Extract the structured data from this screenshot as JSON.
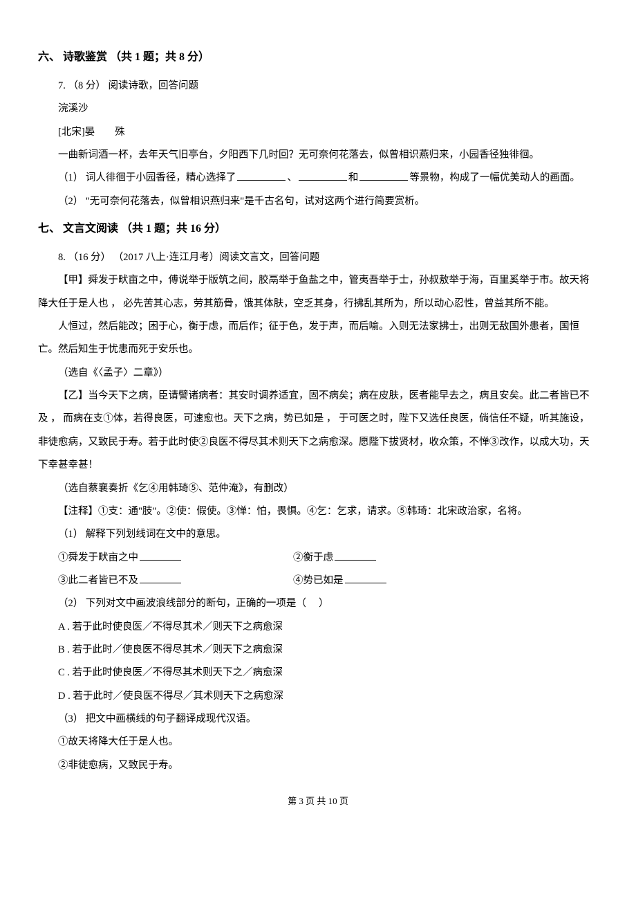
{
  "section6": {
    "heading": "六、 诗歌鉴赏 （共 1 题；共 8 分）",
    "q7_intro": "7. （8 分）  阅读诗歌，回答问题",
    "poem_title": "浣溪沙",
    "poem_author": "[北宋]晏　　殊",
    "poem_body": "一曲新词酒一杯，去年天气旧亭台，夕阳西下几时回？无可奈何花落去，似曾相识燕归来，小园香径独徘徊。",
    "q7_1a": "（1）  词人徘徊于小园香径，精心选择了",
    "q7_1b": "、",
    "q7_1c": "和",
    "q7_1d": "等景物，构成了一幅优美动人的画面。",
    "q7_2": "（2）  \"无可奈何花落去，似曾相识燕归来\"是千古名句，试对这两个进行简要赏析。"
  },
  "section7": {
    "heading": "七、 文言文阅读 （共 1 题；共 16 分）",
    "q8_intro": "8. （16 分） （2017 八上·连江月考）阅读文言文，回答问题",
    "jia1": "【甲】舜发于畎亩之中，傅说举于版筑之间，胶鬲举于鱼盐之中，管夷吾举于士，孙叔敖举于海，百里奚举于市。故天将降大任于是人也 ，  必先苦其心志，劳其筋骨，饿其体肤，空乏其身，行拂乱其所为，所以动心忍性，曾益其所不能。",
    "jia2": "人恒过，然后能改；困于心，衡于虑，而后作；征于色，发于声，而后喻。入则无法家拂士，出则无敌国外患者，国恒亡。然后知生于忧患而死于安乐也。",
    "jia_source": "（选自《〈孟子〉二章》）",
    "yi1": "【乙】当今天下之病，臣请譬诸病者：其安时调养适宜，固不病矣；病在皮肤，医者能早去之，病且安矣。此二者皆已不及 ，  而病在支①体，若得良医，可速愈也。天下之病，势已如是 ，  于可医之时，陛下又选任良医，倘信任不疑，听其施设，非徒愈病，又致民于寿。若于此时使②良医不得尽其术则天下之病愈深。愿陛下拔贤材，收众策，不惮③改作，以成大功，天下幸甚幸甚！",
    "yi_source": "（选自蔡襄奏折《乞④用韩琦⑤、范仲淹》，有删改）",
    "notes": "【注释】①支：通\"肢\"。②使：假使。③惮：怕，畏惧。④乞：乞求，请求。⑤韩琦：北宋政治家，名将。",
    "q8_1_intro": "（1）  解释下列划线词在文中的意思。",
    "def1_left": "①舜发于畎亩之中",
    "def1_right": "②衡于虑",
    "def2_left": "③此二者皆已不及",
    "def2_right": "④势已如是",
    "q8_2": "（2）  下列对文中画波浪线部分的断句，正确的一项是（　 ）",
    "optA": "A .  若于此时使良医／不得尽其术／则天下之病愈深",
    "optB": "B .  若于此时／使良医不得尽其术／则天下之病愈深",
    "optC": "C .  若于此时使良医／不得尽其术则天下之／病愈深",
    "optD": "D .  若于此时／使良医不得尽／其术则天下之病愈深",
    "q8_3": "（3）  把文中画横线的句子翻译成现代汉语。",
    "trans1": "①故天将降大任于是人也。",
    "trans2": "②非徒愈病，又致民于寿。"
  },
  "footer": "第 3 页 共 10 页"
}
